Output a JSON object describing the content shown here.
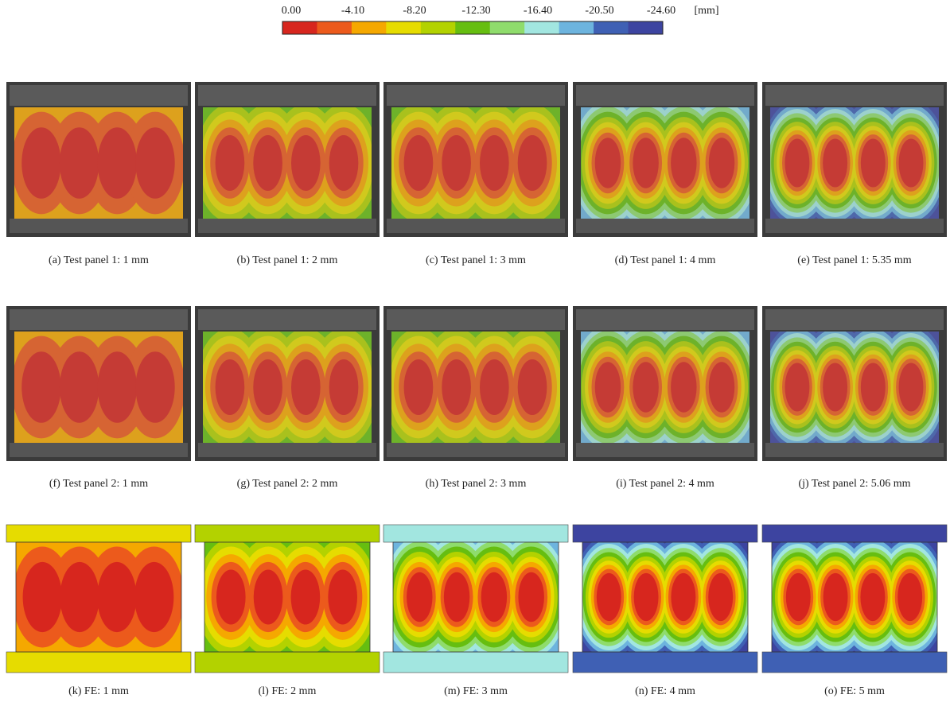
{
  "colorbar": {
    "tick_labels": [
      "0.00",
      "-4.10",
      "-8.20",
      "-12.30",
      "-16.40",
      "-20.50",
      "-24.60"
    ],
    "unit": "[mm]",
    "colors": [
      "#d7261e",
      "#ec5a1c",
      "#f5a800",
      "#e6dc00",
      "#b3d200",
      "#66be10",
      "#8fdc6c",
      "#a2e6e0",
      "#6db4de",
      "#3f60b4",
      "#3d44a0"
    ]
  },
  "panels": [
    [
      "(a) Test panel 1: 1 mm",
      "(b) Test panel 1: 2 mm",
      "(c) Test panel 1: 3 mm",
      "(d) Test panel 1: 4 mm",
      "(e) Test panel 1: 5.35 mm"
    ],
    [
      "(f) Test panel 2: 1 mm",
      "(g) Test panel 2: 2 mm",
      "(h) Test panel 2: 3 mm",
      "(i) Test panel 2: 4 mm",
      "(j) Test panel 2: 5.06 mm"
    ],
    [
      "(k) FE: 1 mm",
      "(l) FE: 2 mm",
      "(m) FE: 3 mm",
      "(n) FE: 4 mm",
      "(o) FE: 5 mm"
    ]
  ]
}
